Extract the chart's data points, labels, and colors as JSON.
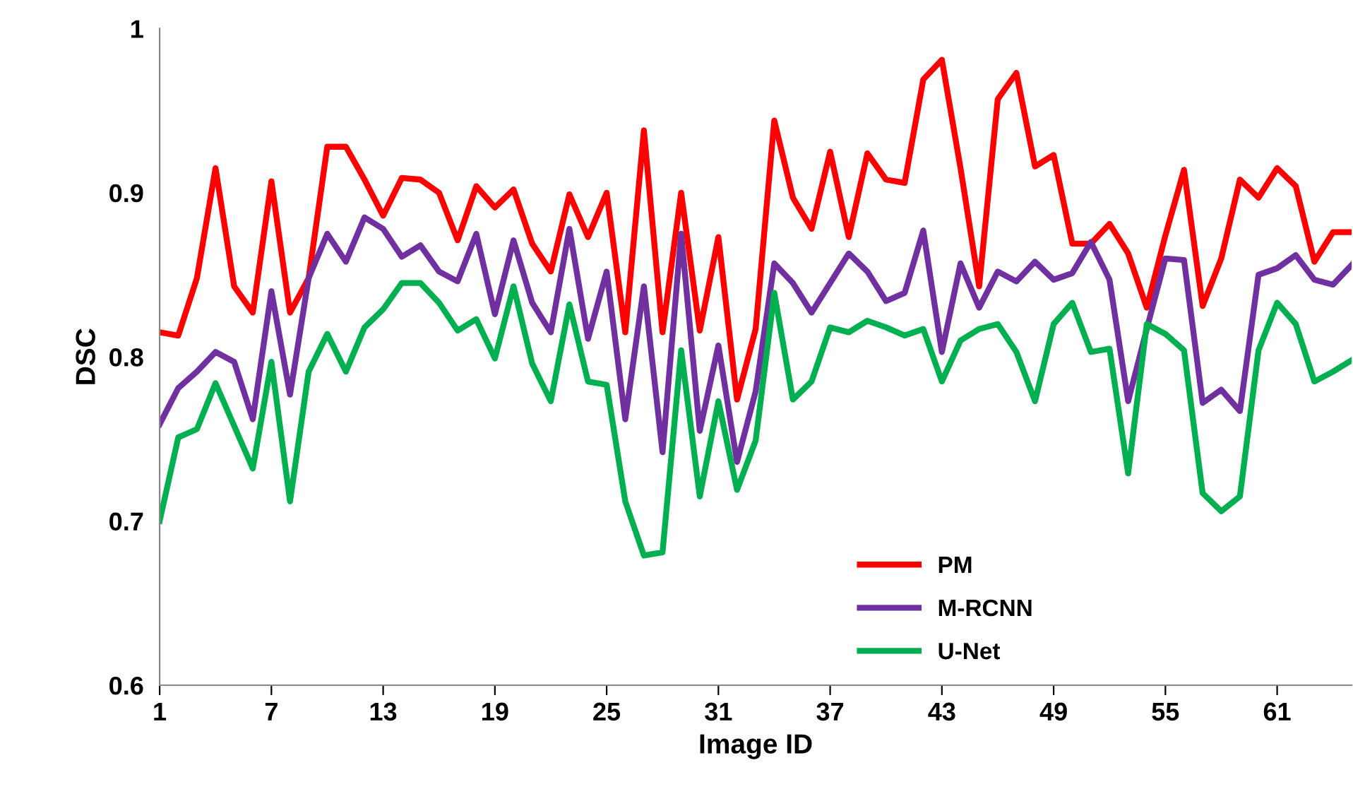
{
  "chart_data": {
    "type": "line",
    "xlabel": "Image ID",
    "ylabel": "DSC",
    "x": [
      1,
      2,
      3,
      4,
      5,
      6,
      7,
      8,
      9,
      10,
      11,
      12,
      13,
      14,
      15,
      16,
      17,
      18,
      19,
      20,
      21,
      22,
      23,
      24,
      25,
      26,
      27,
      28,
      29,
      30,
      31,
      32,
      33,
      34,
      35,
      36,
      37,
      38,
      39,
      40,
      41,
      42,
      43,
      44,
      45,
      46,
      47,
      48,
      49,
      50,
      51,
      52,
      53,
      54,
      55,
      56,
      57,
      58,
      59,
      60,
      61,
      62,
      63,
      64,
      65
    ],
    "xlim": [
      1,
      65
    ],
    "xticks": [
      1,
      7,
      13,
      19,
      25,
      31,
      37,
      43,
      49,
      55,
      61
    ],
    "ylim": [
      0.6,
      1
    ],
    "yticks": [
      0.6,
      0.7,
      0.8,
      0.9,
      1
    ],
    "grid": false,
    "legend": "bottom",
    "marker": "none",
    "line_style": "solid",
    "series": [
      {
        "name": "PM",
        "color": "#ff0000",
        "values": [
          0.815,
          0.813,
          0.848,
          0.915,
          0.843,
          0.827,
          0.907,
          0.827,
          0.848,
          0.928,
          0.928,
          0.908,
          0.886,
          0.909,
          0.908,
          0.9,
          0.871,
          0.904,
          0.891,
          0.902,
          0.869,
          0.852,
          0.899,
          0.873,
          0.9,
          0.815,
          0.938,
          0.815,
          0.9,
          0.816,
          0.873,
          0.774,
          0.817,
          0.944,
          0.897,
          0.878,
          0.925,
          0.873,
          0.924,
          0.908,
          0.906,
          0.969,
          0.981,
          0.915,
          0.843,
          0.957,
          0.973,
          0.916,
          0.923,
          0.869,
          0.869,
          0.881,
          0.863,
          0.83,
          0.874,
          0.914,
          0.831,
          0.86,
          0.908,
          0.897,
          0.915,
          0.904,
          0.858,
          0.876,
          0.876
        ]
      },
      {
        "name": "M-RCNN",
        "color": "#7030a0",
        "values": [
          0.759,
          0.781,
          0.791,
          0.803,
          0.797,
          0.762,
          0.84,
          0.777,
          0.848,
          0.875,
          0.858,
          0.885,
          0.878,
          0.861,
          0.868,
          0.852,
          0.846,
          0.875,
          0.826,
          0.871,
          0.833,
          0.815,
          0.878,
          0.811,
          0.852,
          0.762,
          0.843,
          0.742,
          0.875,
          0.755,
          0.807,
          0.736,
          0.779,
          0.857,
          0.845,
          0.827,
          0.845,
          0.863,
          0.852,
          0.834,
          0.839,
          0.877,
          0.803,
          0.857,
          0.83,
          0.852,
          0.846,
          0.858,
          0.847,
          0.851,
          0.87,
          0.847,
          0.773,
          0.817,
          0.86,
          0.859,
          0.772,
          0.78,
          0.767,
          0.85,
          0.854,
          0.862,
          0.847,
          0.844,
          0.856
        ]
      },
      {
        "name": "U-Net",
        "color": "#00b050",
        "values": [
          0.7,
          0.751,
          0.756,
          0.784,
          0.758,
          0.732,
          0.797,
          0.712,
          0.791,
          0.814,
          0.791,
          0.818,
          0.829,
          0.845,
          0.845,
          0.833,
          0.816,
          0.823,
          0.799,
          0.843,
          0.796,
          0.773,
          0.832,
          0.785,
          0.783,
          0.712,
          0.679,
          0.681,
          0.804,
          0.715,
          0.773,
          0.719,
          0.749,
          0.839,
          0.774,
          0.785,
          0.818,
          0.815,
          0.822,
          0.818,
          0.813,
          0.817,
          0.785,
          0.81,
          0.817,
          0.82,
          0.803,
          0.773,
          0.82,
          0.833,
          0.803,
          0.805,
          0.729,
          0.82,
          0.814,
          0.804,
          0.717,
          0.706,
          0.715,
          0.804,
          0.833,
          0.82,
          0.785,
          0.791,
          0.798
        ]
      }
    ]
  }
}
